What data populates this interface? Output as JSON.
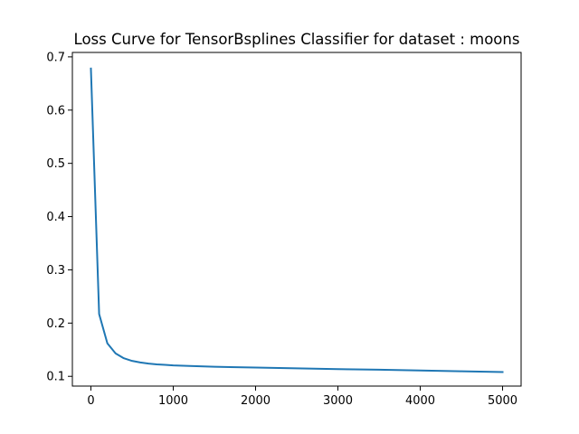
{
  "chart_data": {
    "type": "line",
    "title": "Loss Curve for TensorBsplines Classifier for dataset : moons",
    "xlabel": "",
    "ylabel": "",
    "xlim": [
      -225,
      5225
    ],
    "ylim": [
      0.0817,
      0.7083
    ],
    "grid": false,
    "x_ticks": [
      0,
      1000,
      2000,
      3000,
      4000,
      5000
    ],
    "x_tick_labels": [
      "0",
      "1000",
      "2000",
      "3000",
      "4000",
      "5000"
    ],
    "y_ticks": [
      0.1,
      0.2,
      0.3,
      0.4,
      0.5,
      0.6,
      0.7
    ],
    "y_tick_labels": [
      "0.1",
      "0.2",
      "0.3",
      "0.4",
      "0.5",
      "0.6",
      "0.7"
    ],
    "series": [
      {
        "color": "#1f77b4",
        "x": [
          0,
          100,
          200,
          300,
          400,
          500,
          600,
          700,
          800,
          900,
          1000,
          1200,
          1500,
          2000,
          2500,
          3000,
          3500,
          4000,
          4500,
          5000
        ],
        "y": [
          0.678,
          0.217,
          0.162,
          0.143,
          0.134,
          0.129,
          0.126,
          0.124,
          0.1225,
          0.1215,
          0.1205,
          0.1195,
          0.118,
          0.1165,
          0.115,
          0.1135,
          0.1125,
          0.111,
          0.1095,
          0.108
        ]
      }
    ]
  }
}
